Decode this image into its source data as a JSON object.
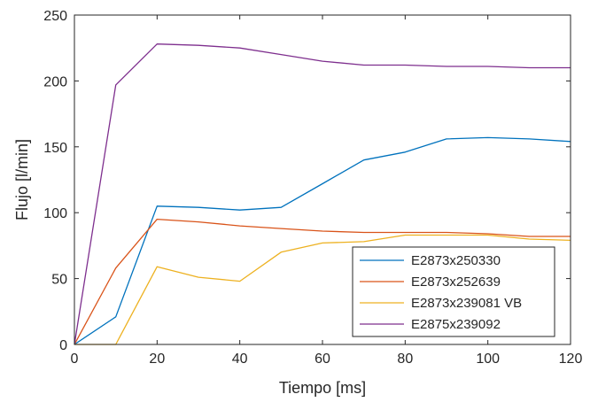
{
  "chart_data": {
    "type": "line",
    "xlabel": "Tiempo [ms]",
    "ylabel": "Flujo [l/min]",
    "xlim": [
      0,
      120
    ],
    "ylim": [
      0,
      250
    ],
    "xticks": [
      0,
      20,
      40,
      60,
      80,
      100,
      120
    ],
    "yticks": [
      0,
      50,
      100,
      150,
      200,
      250
    ],
    "grid": false,
    "legend_position": "bottom-right",
    "x": [
      0,
      10,
      20,
      30,
      40,
      50,
      60,
      70,
      80,
      90,
      100,
      110,
      120
    ],
    "series": [
      {
        "name": "E2873x250330",
        "color": "#0072bd",
        "values": [
          0,
          21,
          105,
          104,
          102,
          104,
          122,
          140,
          146,
          156,
          157,
          156,
          154
        ]
      },
      {
        "name": "E2873x252639",
        "color": "#d95319",
        "values": [
          0,
          58,
          95,
          93,
          90,
          88,
          86,
          85,
          85,
          85,
          84,
          82,
          82
        ]
      },
      {
        "name": "E2873x239081 VB",
        "color": "#edb120",
        "values": [
          0,
          0,
          59,
          51,
          48,
          70,
          77,
          78,
          83,
          83,
          83,
          80,
          79
        ]
      },
      {
        "name": "E2875x239092",
        "color": "#7e2f8e",
        "values": [
          0,
          197,
          228,
          227,
          225,
          220,
          215,
          212,
          212,
          211,
          211,
          210,
          210
        ]
      }
    ]
  }
}
